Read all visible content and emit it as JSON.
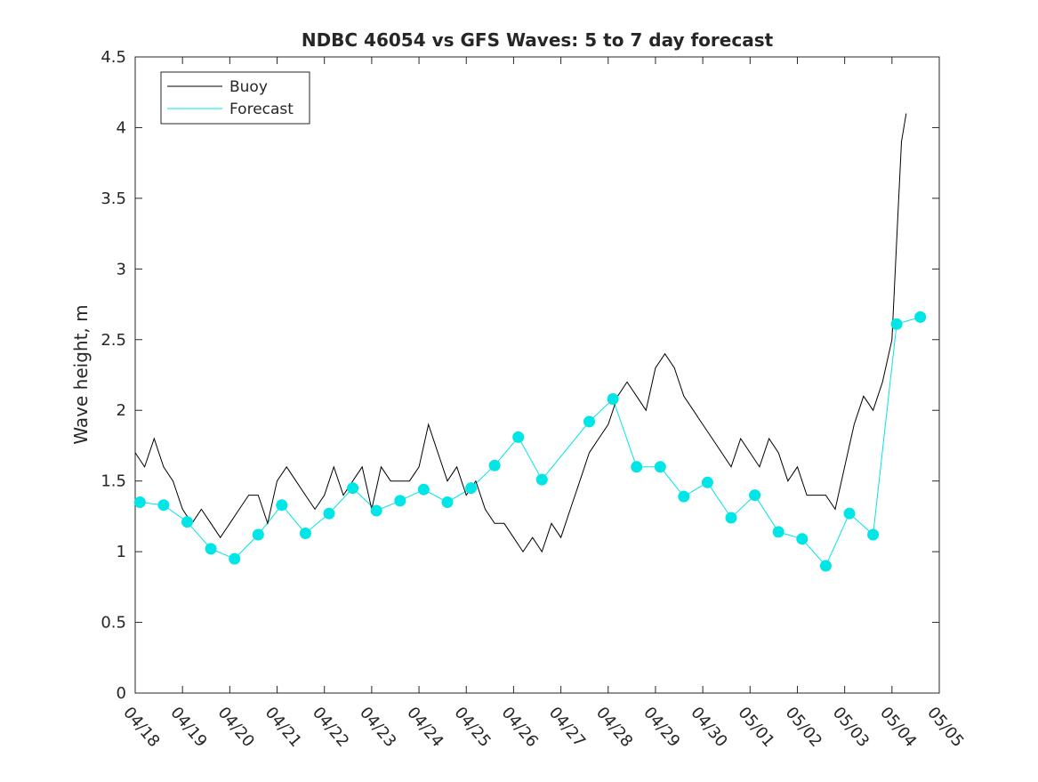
{
  "chart_data": {
    "type": "line",
    "title": "NDBC 46054 vs GFS Waves: 5 to 7 day forecast",
    "ylabel": "Wave height, m",
    "xlabel": "",
    "xlim": [
      "04/18",
      "05/05"
    ],
    "ylim": [
      0,
      4.5
    ],
    "yticks": [
      0,
      0.5,
      1,
      1.5,
      2,
      2.5,
      3,
      3.5,
      4,
      4.5
    ],
    "xticks": [
      "04/18",
      "04/19",
      "04/20",
      "04/21",
      "04/22",
      "04/23",
      "04/24",
      "04/25",
      "04/26",
      "04/27",
      "04/28",
      "04/29",
      "04/30",
      "05/01",
      "05/02",
      "05/03",
      "05/04",
      "05/05"
    ],
    "grid": false,
    "legend": {
      "position": "top-left",
      "entries": [
        {
          "name": "Buoy",
          "color": "#000000"
        },
        {
          "name": "Forecast",
          "color": "#00e5e5"
        }
      ]
    },
    "series": [
      {
        "name": "Buoy",
        "color": "#000000",
        "x_day": [
          0,
          0.2,
          0.4,
          0.6,
          0.8,
          1.0,
          1.2,
          1.4,
          1.6,
          1.8,
          2.0,
          2.2,
          2.4,
          2.6,
          2.8,
          3.0,
          3.2,
          3.4,
          3.6,
          3.8,
          4.0,
          4.2,
          4.4,
          4.6,
          4.8,
          5.0,
          5.2,
          5.4,
          5.6,
          5.8,
          6.0,
          6.2,
          6.4,
          6.6,
          6.8,
          7.0,
          7.2,
          7.4,
          7.6,
          7.8,
          8.0,
          8.2,
          8.4,
          8.6,
          8.8,
          9.0,
          9.2,
          9.4,
          9.6,
          9.8,
          10.0,
          10.2,
          10.4,
          10.6,
          10.8,
          11.0,
          11.2,
          11.4,
          11.6,
          11.8,
          12.0,
          12.2,
          12.4,
          12.6,
          12.8,
          13.0,
          13.2,
          13.4,
          13.6,
          13.8,
          14.0,
          14.2,
          14.4,
          14.6,
          14.8,
          15.0,
          15.2,
          15.4,
          15.6,
          15.8,
          16.0,
          16.1,
          16.2,
          16.3
        ],
        "values": [
          1.7,
          1.6,
          1.8,
          1.6,
          1.5,
          1.3,
          1.2,
          1.3,
          1.2,
          1.1,
          1.2,
          1.3,
          1.4,
          1.4,
          1.2,
          1.5,
          1.6,
          1.5,
          1.4,
          1.3,
          1.4,
          1.6,
          1.4,
          1.5,
          1.6,
          1.3,
          1.6,
          1.5,
          1.5,
          1.5,
          1.6,
          1.9,
          1.7,
          1.5,
          1.6,
          1.4,
          1.5,
          1.3,
          1.2,
          1.2,
          1.1,
          1.0,
          1.1,
          1.0,
          1.2,
          1.1,
          1.3,
          1.5,
          1.7,
          1.8,
          1.9,
          2.1,
          2.2,
          2.1,
          2.0,
          2.3,
          2.4,
          2.3,
          2.1,
          2.0,
          1.9,
          1.8,
          1.7,
          1.6,
          1.8,
          1.7,
          1.6,
          1.8,
          1.7,
          1.5,
          1.6,
          1.4,
          1.4,
          1.4,
          1.3,
          1.6,
          1.9,
          2.1,
          2.0,
          2.2,
          2.5,
          3.2,
          3.9,
          4.1
        ]
      },
      {
        "name": "Forecast",
        "color": "#00e5e5",
        "markers_x_day": [
          0.1,
          0.6,
          1.1,
          1.6,
          2.1,
          2.6,
          3.1,
          3.6,
          4.1,
          4.6,
          5.1,
          5.6,
          6.1,
          6.6,
          7.1,
          7.6,
          8.1,
          8.6,
          9.6,
          10.1,
          10.6,
          11.1,
          11.6,
          12.1,
          12.6,
          13.1,
          13.6,
          14.1,
          14.6,
          15.1,
          15.6,
          16.1,
          16.6
        ],
        "markers_values": [
          1.35,
          1.33,
          1.21,
          1.02,
          0.95,
          1.12,
          1.33,
          1.13,
          1.27,
          1.45,
          1.29,
          1.36,
          1.44,
          1.35,
          1.45,
          1.61,
          1.81,
          1.51,
          1.92,
          2.08,
          1.6,
          1.6,
          1.39,
          1.49,
          1.24,
          1.4,
          1.14,
          1.09,
          0.9,
          1.27,
          1.12,
          2.61,
          2.66
        ]
      }
    ]
  }
}
